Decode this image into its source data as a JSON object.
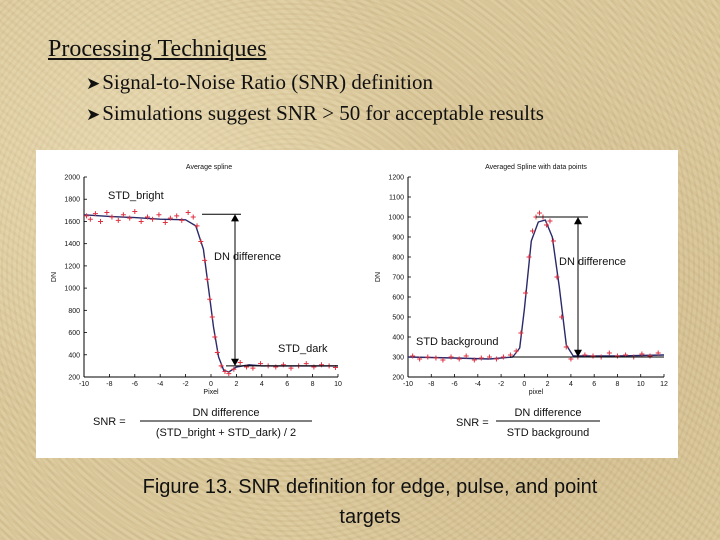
{
  "slide": {
    "title": "Processing Techniques",
    "bullets": [
      "Signal-to-Noise Ratio (SNR) definition",
      "Simulations suggest SNR > 50 for acceptable results"
    ],
    "caption_line1": "Figure 13. SNR definition for edge, pulse, and point",
    "caption_line2": "targets"
  },
  "chart_data": [
    {
      "type": "line",
      "title": "Average spline",
      "xlabel": "Pixel",
      "ylabel": "DN",
      "xlim": [
        -10,
        10
      ],
      "ylim": [
        200,
        2000
      ],
      "xticks": [
        -10,
        -8,
        -6,
        -4,
        -2,
        0,
        2,
        4,
        6,
        8,
        10
      ],
      "yticks": [
        200,
        400,
        600,
        800,
        1000,
        1200,
        1400,
        1600,
        1800,
        2000
      ],
      "series": [
        {
          "kind": "spline",
          "x": [
            -10,
            -8,
            -6,
            -4,
            -2,
            -1.2,
            -0.6,
            -0.2,
            0.2,
            0.6,
            1.0,
            1.4,
            2.0,
            3.0,
            4.0,
            6.0,
            8.0,
            10.0
          ],
          "y": [
            1660,
            1645,
            1635,
            1620,
            1615,
            1560,
            1350,
            1000,
            650,
            380,
            260,
            245,
            290,
            310,
            300,
            300,
            300,
            300
          ]
        },
        {
          "kind": "data points",
          "x": [
            -9.8,
            -9.5,
            -9.1,
            -8.7,
            -8.2,
            -7.8,
            -7.3,
            -6.9,
            -6.4,
            -6.0,
            -5.5,
            -5.0,
            -4.6,
            -4.1,
            -3.6,
            -3.2,
            -2.7,
            -2.3,
            -1.8,
            -1.4,
            -1.1,
            -0.8,
            -0.5,
            -0.3,
            -0.1,
            0.1,
            0.3,
            0.5,
            0.8,
            1.1,
            1.4,
            1.8,
            2.3,
            2.8,
            3.3,
            3.9,
            4.5,
            5.1,
            5.7,
            6.3,
            6.9,
            7.5,
            8.1,
            8.7,
            9.3,
            9.8
          ],
          "y": [
            1650,
            1620,
            1670,
            1600,
            1680,
            1640,
            1610,
            1660,
            1630,
            1690,
            1600,
            1640,
            1620,
            1660,
            1590,
            1630,
            1650,
            1610,
            1680,
            1640,
            1560,
            1420,
            1250,
            1080,
            900,
            740,
            560,
            420,
            300,
            250,
            230,
            270,
            330,
            290,
            280,
            320,
            300,
            290,
            310,
            280,
            300,
            320,
            290,
            310,
            300,
            285
          ]
        }
      ],
      "annotations": {
        "std_bright": "STD_bright",
        "dn_difference": "DN difference",
        "std_dark": "STD_dark",
        "snr_label": "SNR =",
        "snr_numerator": "DN difference",
        "snr_denominator": "(STD_bright + STD_dark) / 2"
      }
    },
    {
      "type": "line",
      "title": "Averaged Spline with data points",
      "xlabel": "pixel",
      "ylabel": "DN",
      "xlim": [
        -10,
        12
      ],
      "ylim": [
        200,
        1200
      ],
      "xticks": [
        -10,
        -8,
        -6,
        -4,
        -2,
        0,
        2,
        4,
        6,
        8,
        10,
        12
      ],
      "yticks": [
        200,
        300,
        400,
        500,
        600,
        700,
        800,
        900,
        1000,
        1100,
        1200
      ],
      "series": [
        {
          "kind": "spline",
          "x": [
            -10,
            -6,
            -3,
            -1,
            -0.4,
            0,
            0.6,
            1.2,
            1.8,
            2.4,
            3.0,
            3.6,
            4.2,
            5.0,
            8.0,
            12.0
          ],
          "y": [
            300,
            295,
            290,
            300,
            345,
            540,
            880,
            975,
            985,
            900,
            650,
            360,
            305,
            305,
            305,
            310
          ],
          "x_note": "x"
        },
        {
          "kind": "data points",
          "x": [
            -9.6,
            -9.0,
            -8.3,
            -7.6,
            -7.0,
            -6.3,
            -5.6,
            -5.0,
            -4.3,
            -3.7,
            -3.0,
            -2.4,
            -1.8,
            -1.2,
            -0.7,
            -0.3,
            0.1,
            0.4,
            0.7,
            1.0,
            1.3,
            1.6,
            1.9,
            2.2,
            2.5,
            2.8,
            3.2,
            3.6,
            4.0,
            4.6,
            5.2,
            5.9,
            6.6,
            7.3,
            8.0,
            8.7,
            9.4,
            10.1,
            10.8,
            11.5
          ],
          "y": [
            305,
            290,
            300,
            295,
            285,
            300,
            290,
            305,
            285,
            295,
            300,
            290,
            300,
            310,
            330,
            420,
            620,
            800,
            930,
            1000,
            1020,
            1000,
            960,
            980,
            880,
            700,
            500,
            350,
            290,
            300,
            310,
            305,
            300,
            320,
            305,
            310,
            300,
            315,
            305,
            320
          ]
        }
      ],
      "annotations": {
        "std_background": "STD background",
        "dn_difference": "DN difference",
        "snr_label": "SNR =",
        "snr_numerator": "DN difference",
        "snr_denominator": "STD background"
      }
    }
  ]
}
